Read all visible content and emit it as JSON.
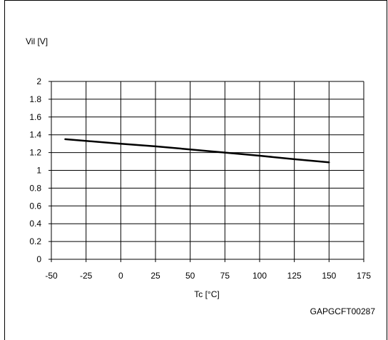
{
  "chart_data": {
    "type": "line",
    "ylabel": "Vil [V]",
    "xlabel": "Tc [°C]",
    "xlim": [
      -50,
      175
    ],
    "ylim": [
      0,
      2
    ],
    "x_ticks": [
      -50,
      -25,
      0,
      25,
      50,
      75,
      100,
      125,
      150,
      175
    ],
    "y_ticks": [
      0,
      0.2,
      0.4,
      0.6,
      0.8,
      1,
      1.2,
      1.4,
      1.6,
      1.8,
      2
    ],
    "grid": true,
    "series": [
      {
        "x": [
          -40,
          0,
          25,
          50,
          75,
          100,
          125,
          150
        ],
        "y": [
          1.35,
          1.3,
          1.27,
          1.235,
          1.2,
          1.165,
          1.125,
          1.09
        ]
      }
    ]
  },
  "figure_code": "GAPGCFT00287"
}
